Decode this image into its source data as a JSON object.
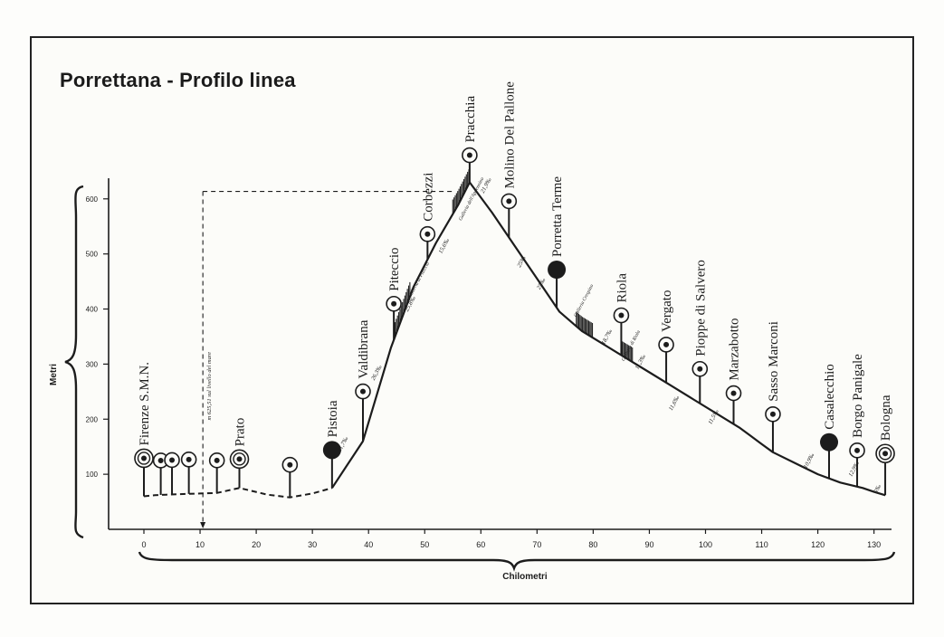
{
  "title": "Porrettana - Profilo linea",
  "axis_y_label": "Metri",
  "axis_x_label": "Chilometri",
  "colors": {
    "ink": "#1c1c1c",
    "paper": "#fcfcf9"
  },
  "altitude_note": "m 625,51 sul livello del mare",
  "chart_data": {
    "type": "line",
    "title": "Porrettana - Profilo linea",
    "xlabel": "Chilometri",
    "ylabel": "Metri",
    "xlim": [
      0,
      132
    ],
    "ylim": [
      0,
      620
    ],
    "x_ticks": [
      0,
      10,
      20,
      30,
      40,
      50,
      60,
      70,
      80,
      90,
      100,
      110,
      120,
      130
    ],
    "x_tick_labels": [
      "0",
      "10",
      "20",
      "30",
      "40",
      "50",
      "60",
      "70",
      "80",
      "90",
      "100",
      "110",
      "120",
      "130"
    ],
    "y_ticks": [
      100,
      200,
      300,
      400,
      500,
      600
    ],
    "y_tick_labels": [
      "100",
      "200",
      "300",
      "400",
      "500",
      "600"
    ],
    "peak_altitude": 625.51,
    "profile": {
      "x": [
        0,
        2,
        4,
        7,
        10,
        13,
        17,
        22,
        26,
        30,
        33.5,
        39,
        44,
        48,
        52,
        56,
        58,
        62,
        66,
        70,
        74,
        78,
        82,
        86,
        90,
        94,
        98,
        102,
        106,
        108,
        110,
        112,
        116,
        120,
        124,
        128,
        130,
        132
      ],
      "y": [
        60,
        62,
        63,
        64,
        65,
        66,
        75,
        63,
        58,
        65,
        75,
        160,
        330,
        440,
        520,
        590,
        630,
        575,
        515,
        455,
        395,
        360,
        335,
        310,
        285,
        260,
        235,
        210,
        185,
        170,
        155,
        140,
        120,
        100,
        85,
        75,
        68,
        62
      ]
    },
    "stations": [
      {
        "name": "Firenze S.M.N.",
        "km": 0,
        "type": "double",
        "labeled": true
      },
      {
        "name": "",
        "km": 3,
        "type": "ring",
        "labeled": false
      },
      {
        "name": "",
        "km": 5,
        "type": "ring",
        "labeled": false
      },
      {
        "name": "",
        "km": 8,
        "type": "ring",
        "labeled": false
      },
      {
        "name": "",
        "km": 13,
        "type": "ring",
        "labeled": false
      },
      {
        "name": "Prato",
        "km": 17,
        "type": "double",
        "labeled": true
      },
      {
        "name": "",
        "km": 26,
        "type": "ring",
        "labeled": false
      },
      {
        "name": "Pistoia",
        "km": 33.5,
        "type": "filled",
        "labeled": true
      },
      {
        "name": "Valdibrana",
        "km": 39,
        "type": "ring",
        "labeled": true
      },
      {
        "name": "Piteccio",
        "km": 44.5,
        "type": "ring",
        "labeled": true
      },
      {
        "name": "Corbezzi",
        "km": 50.5,
        "type": "ring",
        "labeled": true
      },
      {
        "name": "Pracchia",
        "km": 58,
        "type": "ring",
        "labeled": true
      },
      {
        "name": "Molino Del Pallone",
        "km": 65,
        "type": "ring",
        "labeled": true
      },
      {
        "name": "Porretta Terme",
        "km": 73.5,
        "type": "filled",
        "labeled": true
      },
      {
        "name": "Riola",
        "km": 85,
        "type": "ring",
        "labeled": true
      },
      {
        "name": "Vergato",
        "km": 93,
        "type": "ring",
        "labeled": true
      },
      {
        "name": "Pioppe di Salvero",
        "km": 99,
        "type": "ring",
        "labeled": true
      },
      {
        "name": "Marzabotto",
        "km": 105,
        "type": "ring",
        "labeled": true
      },
      {
        "name": "Sasso Marconi",
        "km": 112,
        "type": "ring",
        "labeled": true
      },
      {
        "name": "Casalecchio",
        "km": 122,
        "type": "filled",
        "labeled": true
      },
      {
        "name": "Borgo Panigale",
        "km": 127,
        "type": "ring",
        "labeled": true
      },
      {
        "name": "Bologna",
        "km": 132,
        "type": "double",
        "labeled": true
      }
    ],
    "gradient_notes": [
      {
        "text": "21,7‰",
        "km": 35,
        "y": 140
      },
      {
        "text": "26,3‰",
        "km": 41,
        "y": 270
      },
      {
        "text": "25,8‰",
        "km": 47,
        "y": 395
      },
      {
        "text": "15,6‰",
        "km": 53,
        "y": 500
      },
      {
        "text": "21,9‰",
        "km": 60.5,
        "y": 610
      },
      {
        "text": "25‰",
        "km": 67,
        "y": 475
      },
      {
        "text": "25‰",
        "km": 70.5,
        "y": 435
      },
      {
        "text": "18,7‰",
        "km": 82,
        "y": 335
      },
      {
        "text": "11,3‰",
        "km": 88,
        "y": 290
      },
      {
        "text": "11,6‰",
        "km": 94,
        "y": 215
      },
      {
        "text": "11,5‰",
        "km": 101,
        "y": 190
      },
      {
        "text": "10,9‰",
        "km": 118,
        "y": 110
      },
      {
        "text": "12,9‰",
        "km": 126,
        "y": 95
      },
      {
        "text": "5‰",
        "km": 130.5,
        "y": 65
      }
    ],
    "tunnel_notes": [
      {
        "text": "Galleria di Piteccio",
        "km": 47.5,
        "y": 420
      },
      {
        "text": "Galleria dell'Appennino",
        "km": 56.5,
        "y": 560
      },
      {
        "text": "Galleria Crespino",
        "km": 77,
        "y": 385
      },
      {
        "text": "Galleria di Riola",
        "km": 85.5,
        "y": 305
      }
    ]
  }
}
